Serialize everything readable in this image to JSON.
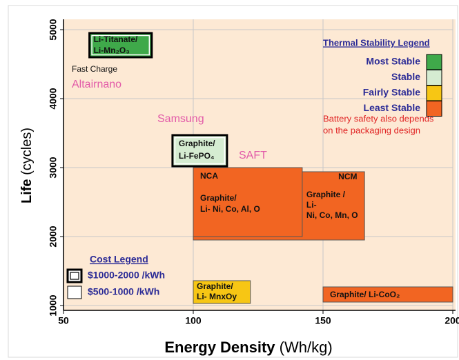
{
  "chart_data": {
    "type": "region",
    "x_label": {
      "main": "Energy Density",
      "unit": "(Wh/kg)"
    },
    "y_label": {
      "main": "Life",
      "unit": "(cycles)"
    },
    "xlim": [
      50,
      200
    ],
    "ylim": [
      930,
      5150
    ],
    "xticks": [
      50,
      100,
      150,
      200
    ],
    "yticks": [
      1000,
      2000,
      3000,
      4000,
      5000
    ],
    "grid": true,
    "regions": [
      {
        "lines": [
          "Li-Titanate/",
          "Li-Mn₂O₃"
        ],
        "x": [
          60,
          84
        ],
        "y": [
          4600,
          4950
        ],
        "color": "#3fa94a",
        "thick_border": true
      },
      {
        "lines": [
          "Graphite/",
          "Li-FePO₄"
        ],
        "x": [
          92,
          113
        ],
        "y": [
          3020,
          3470
        ],
        "color": "#d5ecd1",
        "thick_border": true
      },
      {
        "tag": "NCM",
        "lines": [
          "Graphite /",
          "Li-",
          "Ni, Co, Mn, O"
        ],
        "x": [
          100,
          166
        ],
        "y": [
          1950,
          2940
        ],
        "color": "#f26522",
        "thick_border": false
      },
      {
        "tag": "NCA",
        "lines": [
          "Graphite/",
          "Li- Ni, Co, Al, O"
        ],
        "x": [
          100,
          142
        ],
        "y": [
          2000,
          3000
        ],
        "color": "#f26522",
        "thick_border": false
      },
      {
        "lines": [
          "Graphite/",
          "Li- MnxOy"
        ],
        "x": [
          100,
          122
        ],
        "y": [
          1030,
          1360
        ],
        "color": "#f7c614",
        "thick_border": false
      },
      {
        "lines": [
          "Graphite/ Li-CoO₂"
        ],
        "x": [
          150,
          200
        ],
        "y": [
          1050,
          1270
        ],
        "color": "#f26522",
        "thick_border": false
      }
    ],
    "thermal_legend": {
      "title": "Thermal Stability Legend",
      "entries": [
        {
          "name": "Most Stable",
          "color": "#3fa94a"
        },
        {
          "name": "Stable",
          "color": "#d5ecd1"
        },
        {
          "name": "Fairly Stable",
          "color": "#f7c614"
        },
        {
          "name": "Least Stable",
          "color": "#f26522"
        }
      ],
      "note": [
        "Battery safety also depends",
        "on the packaging design"
      ]
    },
    "cost_legend": {
      "title": "Cost Legend",
      "entries": [
        {
          "name": "$1000-2000 /kWh",
          "thick_border": true
        },
        {
          "name": "$500-1000 /kWh",
          "thick_border": false
        }
      ]
    },
    "annotations": {
      "fast_charge": "Fast Charge",
      "altairnano": "Altairnano",
      "samsung": "Samsung",
      "saft": "SAFT"
    }
  }
}
